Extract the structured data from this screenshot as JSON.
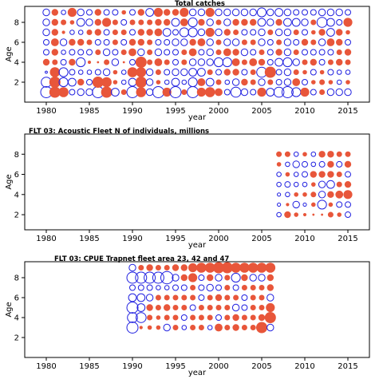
{
  "colors": {
    "positive": "#e8563a",
    "negative": "#1f1fe0",
    "frame": "#000000"
  },
  "chart_data": [
    {
      "type": "bubble",
      "title": "Total catches",
      "xlabel": "year",
      "ylabel": "Age",
      "xlim": [
        1977.5,
        2017.5
      ],
      "ylim": [
        0,
        9.6
      ],
      "xticks": [
        1980,
        1985,
        1990,
        1995,
        2000,
        2005,
        2010,
        2015
      ],
      "yticks": [
        2,
        4,
        6,
        8
      ],
      "years": [
        1980,
        2015
      ],
      "ages": [
        1,
        9
      ],
      "sizes": [
        [
          1.0,
          1.0,
          0.9,
          0.5,
          0.6,
          0.6,
          1.0,
          1.0,
          0.7,
          0.5,
          1.0,
          0.9,
          0.6,
          1.0,
          0.8,
          1.0,
          0.5,
          1.0,
          0.8,
          0.9,
          0.7,
          0.5,
          0.9,
          0.6,
          0.5,
          0.8,
          0.7,
          0.9,
          1.0,
          0.8,
          0.8,
          0.5,
          0.5,
          0.6,
          0.6,
          0.6
        ],
        [
          0.9,
          1.0,
          0.8,
          0.7,
          0.6,
          0.5,
          1.0,
          0.9,
          0.4,
          0.4,
          0.7,
          1.0,
          0.6,
          0.4,
          0.4,
          0.7,
          0.4,
          0.8,
          0.7,
          0.7,
          0.5,
          0.4,
          0.6,
          0.6,
          0.5,
          0.6,
          0.5,
          0.5,
          0.6,
          0.7,
          0.5,
          0.4,
          0.5,
          0.4,
          0.4,
          0.4
        ],
        [
          0.2,
          0.9,
          0.8,
          0.5,
          0.4,
          0.4,
          0.5,
          0.6,
          0.4,
          0.4,
          0.9,
          0.9,
          0.6,
          0.5,
          0.5,
          0.6,
          0.6,
          0.7,
          0.7,
          0.5,
          0.5,
          0.6,
          0.6,
          0.5,
          0.5,
          0.9,
          1.0,
          0.5,
          0.6,
          0.5,
          0.4,
          0.5,
          0.4,
          0.5,
          0.4,
          0.4
        ],
        [
          0.6,
          0.5,
          0.5,
          0.6,
          0.8,
          0.3,
          0.2,
          0.5,
          0.6,
          0.2,
          0.5,
          1.0,
          0.5,
          0.7,
          0.5,
          0.5,
          0.5,
          0.6,
          0.6,
          0.6,
          0.8,
          0.8,
          0.7,
          0.5,
          0.7,
          0.6,
          0.5,
          0.7,
          0.8,
          0.6,
          0.5,
          0.6,
          0.5,
          0.5,
          0.6,
          0.5
        ],
        [
          0.5,
          0.6,
          0.4,
          0.5,
          0.5,
          0.5,
          0.5,
          0.6,
          0.5,
          0.5,
          0.7,
          0.6,
          0.5,
          0.6,
          0.5,
          0.5,
          0.5,
          0.7,
          0.5,
          0.6,
          0.5,
          0.7,
          0.6,
          0.6,
          0.5,
          0.5,
          0.5,
          0.6,
          0.6,
          0.5,
          0.5,
          0.5,
          0.5,
          0.5,
          0.5,
          0.6
        ],
        [
          0.5,
          0.7,
          0.6,
          0.6,
          0.6,
          0.5,
          0.5,
          0.5,
          0.5,
          0.5,
          0.6,
          0.6,
          0.5,
          0.5,
          0.5,
          0.6,
          0.6,
          0.6,
          0.7,
          0.6,
          0.5,
          0.6,
          0.6,
          0.5,
          0.5,
          0.6,
          0.5,
          0.5,
          0.6,
          0.5,
          0.6,
          0.5,
          0.6,
          0.7,
          0.6,
          0.5
        ],
        [
          0.6,
          0.6,
          0.3,
          0.4,
          0.4,
          0.5,
          0.6,
          0.5,
          0.5,
          0.5,
          0.5,
          0.6,
          0.6,
          0.7,
          0.7,
          0.5,
          0.8,
          0.8,
          0.6,
          0.8,
          0.6,
          0.6,
          0.5,
          0.5,
          0.5,
          0.6,
          0.5,
          0.6,
          0.6,
          0.5,
          0.5,
          0.4,
          0.6,
          0.7,
          0.6,
          0.4
        ],
        [
          0.6,
          0.6,
          0.5,
          0.4,
          0.7,
          0.6,
          0.6,
          0.8,
          0.5,
          0.5,
          0.5,
          0.5,
          0.5,
          0.6,
          0.6,
          0.7,
          0.7,
          0.8,
          0.6,
          0.6,
          0.5,
          0.6,
          0.6,
          0.6,
          0.6,
          0.7,
          0.6,
          0.6,
          0.7,
          0.7,
          0.6,
          0.5,
          0.9,
          0.7,
          0.5,
          0.8
        ],
        [
          0.6,
          0.6,
          0.4,
          0.8,
          0.6,
          0.5,
          0.6,
          0.5,
          0.5,
          0.4,
          0.5,
          0.6,
          0.7,
          0.8,
          0.6,
          0.6,
          0.8,
          0.6,
          0.6,
          0.8,
          0.6,
          0.6,
          0.6,
          0.6,
          0.6,
          0.8,
          0.6,
          0.7,
          0.6,
          0.5,
          0.5,
          0.5,
          0.6,
          0.6,
          0.6,
          0.5
        ]
      ],
      "signs": [
        [
          "n",
          "p",
          "p",
          "n",
          "n",
          "n",
          "n",
          "p",
          "n",
          "p",
          "n",
          "p",
          "n",
          "n",
          "p",
          "n",
          "p",
          "n",
          "p",
          "p",
          "p",
          "n",
          "n",
          "n",
          "n",
          "p",
          "n",
          "n",
          "n",
          "n",
          "p",
          "n",
          "p",
          "n",
          "n",
          "n"
        ],
        [
          "n",
          "p",
          "n",
          "n",
          "p",
          "n",
          "p",
          "p",
          "p",
          "n",
          "n",
          "p",
          "n",
          "p",
          "n",
          "n",
          "n",
          "n",
          "p",
          "n",
          "p",
          "n",
          "n",
          "p",
          "p",
          "n",
          "p",
          "n",
          "n",
          "p",
          "n",
          "p",
          "p",
          "p",
          "n",
          "p"
        ],
        [
          "n",
          "p",
          "n",
          "n",
          "n",
          "n",
          "n",
          "n",
          "p",
          "n",
          "p",
          "p",
          "n",
          "p",
          "n",
          "n",
          "n",
          "n",
          "n",
          "p",
          "n",
          "p",
          "p",
          "n",
          "p",
          "n",
          "p",
          "n",
          "n",
          "p",
          "p",
          "n",
          "p",
          "n",
          "n",
          "n"
        ],
        [
          "p",
          "p",
          "n",
          "p",
          "n",
          "p",
          "p",
          "p",
          "n",
          "p",
          "n",
          "p",
          "p",
          "p",
          "p",
          "n",
          "p",
          "n",
          "n",
          "n",
          "n",
          "n",
          "p",
          "p",
          "p",
          "p",
          "n",
          "n",
          "n",
          "n",
          "p",
          "p",
          "n",
          "p",
          "p",
          "p"
        ],
        [
          "n",
          "p",
          "n",
          "n",
          "n",
          "n",
          "p",
          "n",
          "n",
          "p",
          "p",
          "n",
          "p",
          "n",
          "n",
          "n",
          "p",
          "p",
          "n",
          "n",
          "p",
          "p",
          "p",
          "n",
          "n",
          "p",
          "n",
          "p",
          "n",
          "p",
          "n",
          "n",
          "n",
          "n",
          "p",
          "p"
        ],
        [
          "n",
          "p",
          "n",
          "p",
          "p",
          "p",
          "n",
          "n",
          "p",
          "n",
          "p",
          "p",
          "p",
          "n",
          "n",
          "n",
          "n",
          "p",
          "p",
          "n",
          "p",
          "n",
          "n",
          "p",
          "p",
          "n",
          "n",
          "p",
          "n",
          "n",
          "p",
          "p",
          "n",
          "p",
          "p",
          "n"
        ],
        [
          "n",
          "p",
          "p",
          "n",
          "n",
          "p",
          "p",
          "n",
          "p",
          "p",
          "n",
          "p",
          "p",
          "p",
          "n",
          "n",
          "n",
          "n",
          "n",
          "p",
          "n",
          "p",
          "p",
          "n",
          "n",
          "n",
          "p",
          "n",
          "n",
          "p",
          "n",
          "p",
          "p",
          "n",
          "p",
          "p"
        ],
        [
          "n",
          "p",
          "p",
          "p",
          "n",
          "n",
          "p",
          "p",
          "p",
          "n",
          "p",
          "p",
          "p",
          "p",
          "p",
          "n",
          "p",
          "n",
          "p",
          "n",
          "p",
          "n",
          "p",
          "p",
          "p",
          "n",
          "n",
          "p",
          "n",
          "n",
          "n",
          "p",
          "n",
          "n",
          "n",
          "p"
        ],
        [
          "n",
          "p",
          "n",
          "p",
          "n",
          "n",
          "p",
          "n",
          "n",
          "p",
          "n",
          "p",
          "n",
          "p",
          "p",
          "p",
          "p",
          "n",
          "n",
          "p",
          "n",
          "n",
          "n",
          "n",
          "n",
          "n",
          "n",
          "n",
          "n",
          "n",
          "n",
          "n",
          "n",
          "n",
          "n",
          "n"
        ]
      ]
    },
    {
      "type": "bubble",
      "title": "FLT 03: Acoustic Fleet   N of individuals, millions",
      "xlabel": "year",
      "ylabel": "Age",
      "xlim": [
        1977.5,
        2017.5
      ],
      "ylim": [
        0.5,
        10
      ],
      "xticks": [
        1980,
        1985,
        1990,
        1995,
        2000,
        2005,
        2010,
        2015
      ],
      "yticks": [
        2,
        4,
        6,
        8
      ],
      "years": [
        2007,
        2015
      ],
      "ages": [
        2,
        8
      ],
      "sizes": [
        [
          0.4,
          0.6,
          0.4,
          0.3,
          0.2,
          0.2,
          0.5,
          0.4,
          0.5
        ],
        [
          0.3,
          0.3,
          0.6,
          0.3,
          0.4,
          0.8,
          0.4,
          0.5,
          0.5
        ],
        [
          0.3,
          0.4,
          0.4,
          0.4,
          0.5,
          0.6,
          0.6,
          0.7,
          0.8
        ],
        [
          0.4,
          0.5,
          0.4,
          0.4,
          0.4,
          0.6,
          0.7,
          0.5,
          0.6
        ],
        [
          0.4,
          0.4,
          0.4,
          0.5,
          0.6,
          0.6,
          0.6,
          0.5,
          0.5
        ],
        [
          0.4,
          0.4,
          0.6,
          0.5,
          0.4,
          0.5,
          0.6,
          0.5,
          0.6
        ],
        [
          0.5,
          0.5,
          0.4,
          0.4,
          0.4,
          0.6,
          0.6,
          0.5,
          0.5
        ]
      ],
      "signs": [
        [
          "n",
          "p",
          "p",
          "p",
          "p",
          "p",
          "p",
          "p",
          "n"
        ],
        [
          "n",
          "p",
          "n",
          "n",
          "p",
          "n",
          "p",
          "n",
          "n"
        ],
        [
          "n",
          "n",
          "p",
          "p",
          "p",
          "n",
          "p",
          "p",
          "p"
        ],
        [
          "n",
          "n",
          "n",
          "n",
          "p",
          "n",
          "n",
          "p",
          "p"
        ],
        [
          "n",
          "p",
          "n",
          "n",
          "p",
          "p",
          "p",
          "p",
          "n"
        ],
        [
          "p",
          "n",
          "n",
          "n",
          "n",
          "n",
          "p",
          "n",
          "p"
        ],
        [
          "p",
          "p",
          "n",
          "p",
          "n",
          "p",
          "p",
          "p",
          "p"
        ]
      ]
    },
    {
      "type": "bubble",
      "title": "FLT 03: CPUE Trapnet fleet area 23, 42 and 47",
      "xlabel": "year",
      "ylabel": "Age",
      "xlim": [
        1977.5,
        2017.5
      ],
      "ylim": [
        0,
        9.6
      ],
      "xticks": [
        1980,
        1985,
        1990,
        1995,
        2000,
        2005,
        2010,
        2015
      ],
      "yticks": [
        2,
        4,
        6,
        8
      ],
      "years": [
        1990,
        2006
      ],
      "ages": [
        3,
        9
      ],
      "sizes": [
        [
          1.0,
          0.3,
          0.4,
          0.4,
          0.6,
          0.5,
          0.4,
          0.5,
          0.5,
          0.4,
          0.7,
          0.5,
          0.6,
          0.5,
          0.5,
          1.0,
          0.6
        ],
        [
          0.9,
          0.9,
          0.5,
          0.4,
          0.5,
          0.5,
          0.5,
          0.5,
          0.5,
          0.5,
          0.5,
          0.5,
          0.6,
          0.5,
          0.5,
          0.6,
          1.0
        ],
        [
          1.0,
          0.7,
          0.6,
          0.5,
          0.6,
          0.5,
          0.5,
          0.5,
          0.5,
          0.5,
          0.5,
          0.5,
          0.6,
          0.5,
          0.5,
          0.5,
          0.8
        ],
        [
          0.7,
          0.7,
          0.6,
          0.5,
          0.5,
          0.5,
          0.5,
          0.5,
          0.5,
          0.5,
          0.6,
          0.5,
          0.5,
          0.5,
          0.5,
          0.5,
          0.6
        ],
        [
          0.5,
          0.5,
          0.5,
          0.4,
          0.4,
          0.5,
          0.5,
          0.5,
          0.5,
          0.6,
          0.5,
          0.5,
          0.5,
          0.5,
          0.5,
          0.5,
          0.6
        ],
        [
          1.0,
          1.0,
          1.0,
          1.0,
          1.1,
          0.6,
          0.6,
          0.8,
          0.5,
          0.6,
          0.6,
          0.5,
          0.8,
          0.6,
          0.6,
          0.6,
          0.6
        ],
        [
          0.6,
          0.5,
          0.6,
          0.5,
          0.5,
          0.6,
          0.6,
          0.8,
          0.9,
          0.9,
          1.0,
          1.0,
          0.9,
          0.9,
          0.9,
          0.9,
          0.9
        ]
      ],
      "signs": [
        [
          "n",
          "p",
          "p",
          "p",
          "n",
          "p",
          "n",
          "p",
          "p",
          "n",
          "p",
          "p",
          "p",
          "p",
          "p",
          "p",
          "n"
        ],
        [
          "n",
          "n",
          "p",
          "p",
          "p",
          "p",
          "n",
          "p",
          "p",
          "p",
          "n",
          "p",
          "p",
          "p",
          "p",
          "p",
          "p"
        ],
        [
          "n",
          "n",
          "p",
          "p",
          "p",
          "p",
          "p",
          "n",
          "p",
          "p",
          "p",
          "p",
          "n",
          "n",
          "p",
          "p",
          "p"
        ],
        [
          "n",
          "n",
          "n",
          "p",
          "p",
          "p",
          "p",
          "p",
          "n",
          "p",
          "p",
          "p",
          "p",
          "n",
          "p",
          "p",
          "n"
        ],
        [
          "n",
          "n",
          "n",
          "n",
          "n",
          "n",
          "n",
          "p",
          "n",
          "n",
          "n",
          "p",
          "n",
          "p",
          "p",
          "p",
          "p"
        ],
        [
          "n",
          "n",
          "n",
          "n",
          "n",
          "n",
          "p",
          "p",
          "n",
          "p",
          "n",
          "p",
          "n",
          "p",
          "n",
          "n",
          "p"
        ],
        [
          "n",
          "p",
          "p",
          "p",
          "p",
          "p",
          "p",
          "p",
          "p",
          "p",
          "p",
          "p",
          "p",
          "p",
          "p",
          "p",
          "p"
        ]
      ]
    }
  ]
}
